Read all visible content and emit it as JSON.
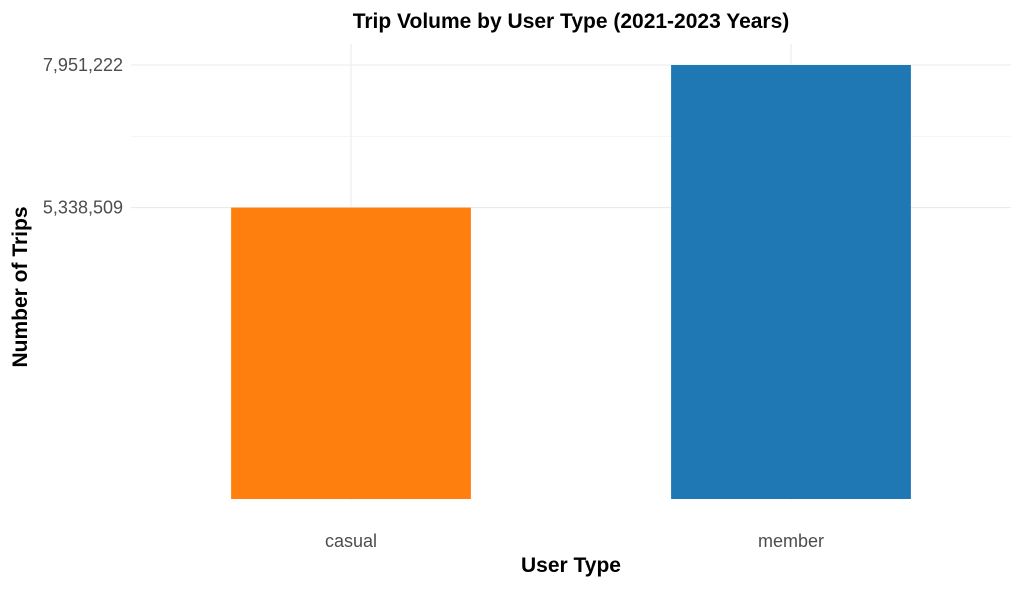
{
  "chart_data": {
    "type": "bar",
    "title": "Trip Volume by User Type (2021-2023 Years)",
    "xlabel": "User Type",
    "ylabel": "Number of Trips",
    "categories": [
      "casual",
      "member"
    ],
    "values": [
      5338509,
      7951222
    ],
    "colors": [
      "#ff7f0e",
      "#1f77b4"
    ],
    "yticks": [
      {
        "value": 5338509,
        "label": "5,338,509"
      },
      {
        "value": 7951222,
        "label": "7,951,222"
      }
    ],
    "ylim": [
      0,
      8250000
    ],
    "grid": true,
    "legend": "none"
  }
}
